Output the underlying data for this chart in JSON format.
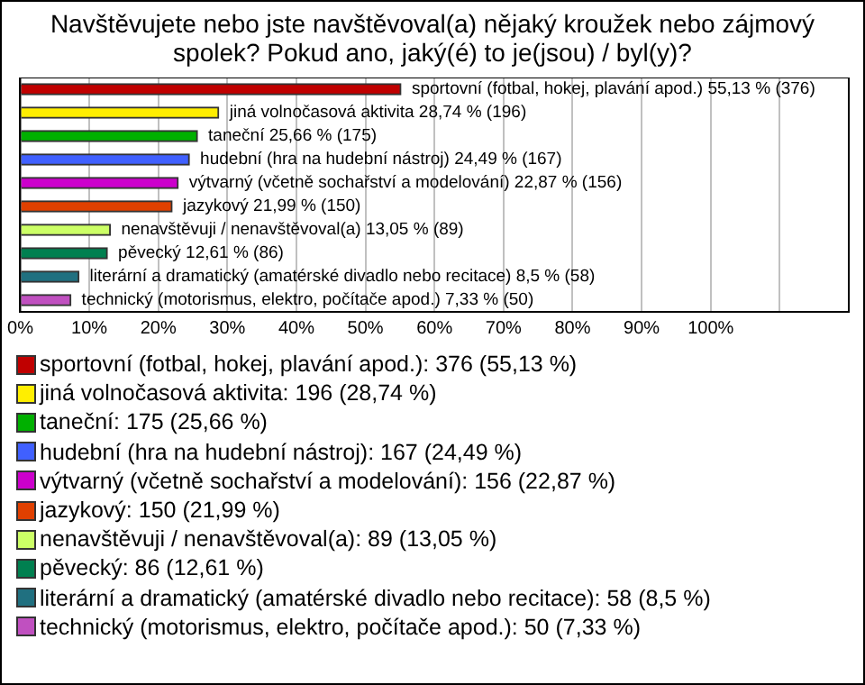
{
  "chart_data": {
    "type": "bar",
    "orientation": "horizontal",
    "title": "Navštěvujete nebo jste navštěvoval(a) nějaký kroužek nebo zájmový spolek? Pokud ano, jaký(é) to je(jsou) / byl(y)?",
    "categories": [
      "sportovní (fotbal, hokej, plavání apod.)",
      "jiná volnočasová aktivita",
      "taneční",
      "hudební (hra na hudební nástroj)",
      "výtvarný (včetně sochařství a modelování)",
      "jazykový",
      "nenavštěvuji / nenavštěvoval(a)",
      "pěvecký",
      "literární a dramatický (amatérské divadlo nebo recitace)",
      "technický (motorismus, elektro, počítače apod.)"
    ],
    "values": [
      55.13,
      28.74,
      25.66,
      24.49,
      22.87,
      21.99,
      13.05,
      12.61,
      8.5,
      7.33
    ],
    "value_labels": [
      "55,13 % (376)",
      "28,74 % (196)",
      "25,66 % (175)",
      "24,49 % (167)",
      "22,87 % (156)",
      "21,99 % (150)",
      "13,05 % (89)",
      "12,61 % (86)",
      "8,5 % (58)",
      "7,33 % (50)"
    ],
    "colors": [
      "#c00000",
      "#ffee00",
      "#00b000",
      "#4060ff",
      "#cc00cc",
      "#e04000",
      "#ccff66",
      "#008050",
      "#207080",
      "#c050c0"
    ],
    "xlim": [
      0,
      120
    ],
    "xticks": [
      {
        "value": 0,
        "label": "0%"
      },
      {
        "value": 10,
        "label": "10%"
      },
      {
        "value": 20,
        "label": "20%"
      },
      {
        "value": 30,
        "label": "30%"
      },
      {
        "value": 40,
        "label": "40%"
      },
      {
        "value": 50,
        "label": "50%"
      },
      {
        "value": 60,
        "label": "60%"
      },
      {
        "value": 70,
        "label": "70%"
      },
      {
        "value": 80,
        "label": "80%"
      },
      {
        "value": 90,
        "label": "90%"
      },
      {
        "value": 100,
        "label": "100%"
      },
      {
        "value": 110,
        "label": null
      }
    ],
    "grid": "x",
    "tick_labels": "x",
    "annotations": [
      "sportovní (fotbal, hokej, plavání apod.): 376 (55,13 %)",
      "jiná volnočasová aktivita: 196 (28,74 %)",
      "taneční: 175 (25,66 %)",
      "hudební (hra na hudební nástroj): 167 (24,49 %)",
      "výtvarný (včetně sochařství a modelování): 156 (22,87 %)",
      "jazykový: 150 (21,99 %)",
      "nenavštěvuji / nenavštěvoval(a): 89 (13,05 %)",
      "pěvecký: 86 (12,61 %)",
      "literární a dramatický (amatérské divadlo nebo recitace): 58 (8,5 %)",
      "technický (motorismus, elektro, počítače apod.): 50 (7,33 %)"
    ]
  }
}
